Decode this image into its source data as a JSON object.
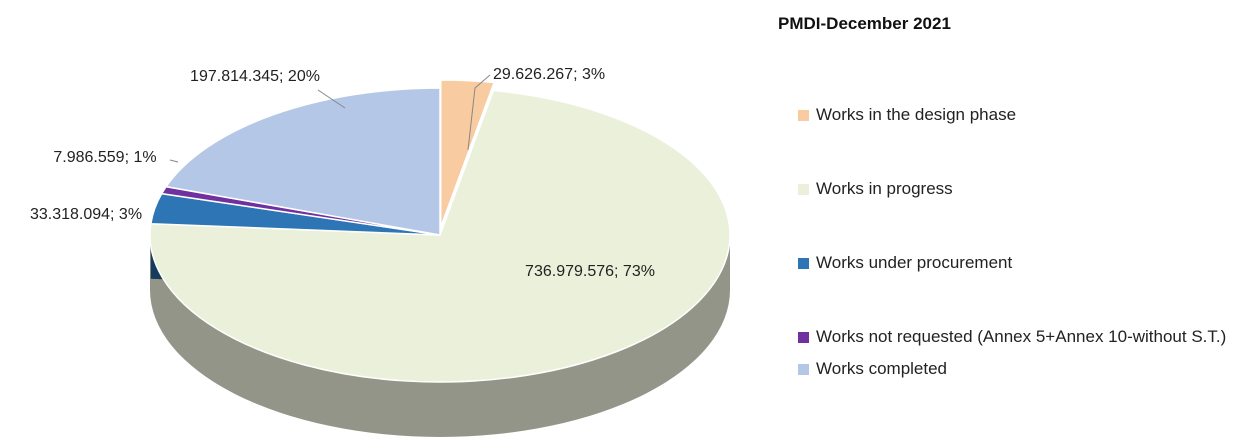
{
  "chart_data": {
    "type": "pie",
    "title": "PMDI-December 2021",
    "categories": [
      "Works in the design phase",
      "Works in progress",
      "Works under procurement",
      "Works not requested (Annex 5+Annex 10-without S.T.)",
      "Works completed"
    ],
    "values": [
      29626267,
      736979576,
      33318094,
      7986559,
      197814345
    ],
    "value_labels": [
      "29.626.267; 3%",
      "736.979.576; 73%",
      "33.318.094; 3%",
      "7.986.559; 1%",
      "197.814.345; 20%"
    ],
    "colors": [
      "#f8cba0",
      "#ebf0da",
      "#2e75b6",
      "#7030a0",
      "#b4c7e7"
    ],
    "legend": "right"
  }
}
